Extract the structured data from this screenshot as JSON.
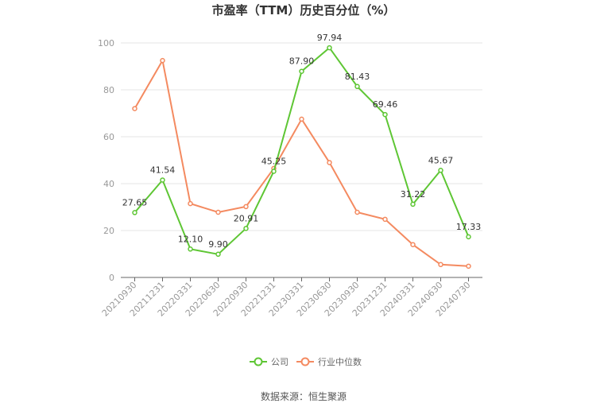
{
  "chart_data": {
    "type": "line",
    "title": "市盈率（TTM）历史百分位（%）",
    "xlabel": "",
    "ylabel": "",
    "ylim": [
      0,
      100
    ],
    "yticks": [
      0,
      20,
      40,
      60,
      80,
      100
    ],
    "grid": true,
    "legend_position": "bottom-center",
    "categories": [
      "20210930",
      "20211231",
      "20220331",
      "20220630",
      "20220930",
      "20221231",
      "20230331",
      "20230630",
      "20230930",
      "20231231",
      "20240331",
      "20240630",
      "20240730"
    ],
    "series": [
      {
        "name": "公司",
        "color": "#5ec634",
        "values": [
          27.65,
          41.54,
          12.1,
          9.9,
          20.91,
          45.25,
          87.9,
          97.94,
          81.43,
          69.46,
          31.22,
          45.67,
          17.33
        ],
        "labels": [
          "27.65",
          "41.54",
          "12.10",
          "9.90",
          "20.91",
          "45.25",
          "87.90",
          "97.94",
          "81.43",
          "69.46",
          "31.22",
          "45.67",
          "17.33"
        ]
      },
      {
        "name": "行业中位数",
        "color": "#f48a60",
        "values": [
          72.0,
          92.5,
          31.5,
          27.8,
          30.2,
          46.5,
          67.5,
          49.0,
          27.8,
          24.8,
          14.0,
          5.5,
          4.8
        ]
      }
    ]
  },
  "footer": {
    "source": "数据来源：恒生聚源"
  }
}
